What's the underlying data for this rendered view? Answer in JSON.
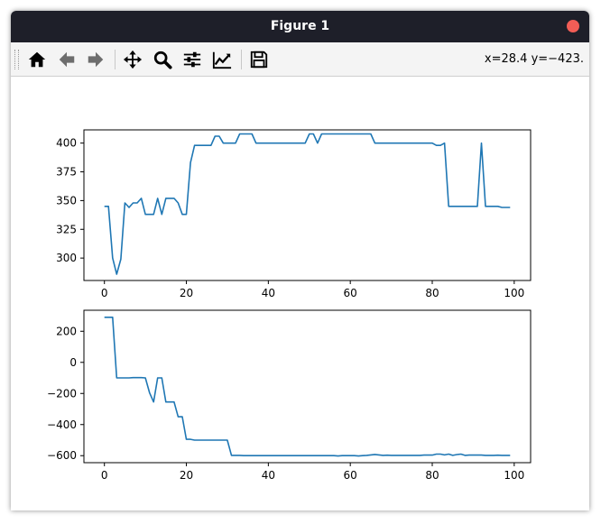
{
  "window": {
    "title": "Figure 1"
  },
  "toolbar": {
    "tools": [
      "home-icon",
      "back-arrow-icon",
      "forward-arrow-icon",
      "pan-icon",
      "zoom-icon",
      "configure-subplots-icon",
      "edit-axes-icon",
      "save-icon"
    ],
    "coords_text": "x=28.4 y=−423."
  },
  "colors": {
    "line": "#1f77b4",
    "titlebar": "#1e1f29",
    "close": "#f25d56"
  },
  "chart_data": [
    {
      "type": "line",
      "title": "",
      "xlabel": "",
      "ylabel": "",
      "xlim": [
        -5.0,
        104.0
      ],
      "ylim": [
        280.5,
        411.5
      ],
      "xticks": [
        0,
        20,
        40,
        60,
        80,
        100
      ],
      "xtick_labels": [
        "0",
        "20",
        "40",
        "60",
        "80",
        "100"
      ],
      "yticks": [
        300,
        325,
        350,
        375,
        400
      ],
      "ytick_labels": [
        "300",
        "325",
        "350",
        "375",
        "400"
      ],
      "grid": false,
      "x": [
        0,
        1,
        2,
        3,
        4,
        5,
        6,
        7,
        8,
        9,
        10,
        11,
        12,
        13,
        14,
        15,
        16,
        17,
        18,
        19,
        20,
        21,
        22,
        23,
        24,
        25,
        26,
        27,
        28,
        29,
        30,
        31,
        32,
        33,
        34,
        35,
        36,
        37,
        38,
        39,
        40,
        41,
        42,
        43,
        44,
        45,
        46,
        47,
        48,
        49,
        50,
        51,
        52,
        53,
        54,
        55,
        56,
        57,
        58,
        59,
        60,
        61,
        62,
        63,
        64,
        65,
        66,
        67,
        68,
        69,
        70,
        71,
        72,
        73,
        74,
        75,
        76,
        77,
        78,
        79,
        80,
        81,
        82,
        83,
        84,
        85,
        86,
        87,
        88,
        89,
        90,
        91,
        92,
        93,
        94,
        95,
        96,
        97,
        98,
        99
      ],
      "y": [
        345,
        345,
        300,
        286,
        299,
        348,
        344,
        348,
        348,
        352,
        338,
        338,
        338,
        352,
        338,
        352,
        352,
        352,
        348,
        338,
        338,
        383,
        398,
        398,
        398,
        398,
        398,
        406,
        406,
        400,
        400,
        400,
        400,
        408,
        408,
        408,
        408,
        400,
        400,
        400,
        400,
        400,
        400,
        400,
        400,
        400,
        400,
        400,
        400,
        400,
        408,
        408,
        400,
        408,
        408,
        408,
        408,
        408,
        408,
        408,
        408,
        408,
        408,
        408,
        408,
        408,
        400,
        400,
        400,
        400,
        400,
        400,
        400,
        400,
        400,
        400,
        400,
        400,
        400,
        400,
        400,
        398,
        398,
        400,
        345,
        345,
        345,
        345,
        345,
        345,
        345,
        345,
        400,
        345,
        345,
        345,
        345,
        344,
        344,
        344
      ]
    },
    {
      "type": "line",
      "title": "",
      "xlabel": "",
      "ylabel": "",
      "xlim": [
        -5.0,
        104.0
      ],
      "ylim": [
        -645,
        335
      ],
      "xticks": [
        0,
        20,
        40,
        60,
        80,
        100
      ],
      "xtick_labels": [
        "0",
        "20",
        "40",
        "60",
        "80",
        "100"
      ],
      "yticks": [
        200,
        0,
        -200,
        -400,
        -600
      ],
      "ytick_labels": [
        "200",
        "0",
        "−200",
        "−400",
        "−600"
      ],
      "grid": false,
      "x": [
        0,
        1,
        2,
        3,
        4,
        5,
        6,
        7,
        8,
        9,
        10,
        11,
        12,
        13,
        14,
        15,
        16,
        17,
        18,
        19,
        20,
        21,
        22,
        23,
        24,
        25,
        26,
        27,
        28,
        29,
        30,
        31,
        32,
        33,
        34,
        35,
        36,
        37,
        38,
        39,
        40,
        41,
        42,
        43,
        44,
        45,
        46,
        47,
        48,
        49,
        50,
        51,
        52,
        53,
        54,
        55,
        56,
        57,
        58,
        59,
        60,
        61,
        62,
        63,
        64,
        65,
        66,
        67,
        68,
        69,
        70,
        71,
        72,
        73,
        74,
        75,
        76,
        77,
        78,
        79,
        80,
        81,
        82,
        83,
        84,
        85,
        86,
        87,
        88,
        89,
        90,
        91,
        92,
        93,
        94,
        95,
        96,
        97,
        98,
        99
      ],
      "y": [
        290,
        290,
        290,
        -100,
        -100,
        -100,
        -100,
        -98,
        -98,
        -98,
        -100,
        -195,
        -255,
        -100,
        -100,
        -255,
        -255,
        -255,
        -350,
        -350,
        -495,
        -495,
        -500,
        -500,
        -500,
        -500,
        -500,
        -500,
        -500,
        -500,
        -500,
        -598,
        -598,
        -598,
        -600,
        -600,
        -600,
        -600,
        -600,
        -600,
        -600,
        -600,
        -600,
        -600,
        -600,
        -600,
        -600,
        -600,
        -600,
        -600,
        -600,
        -600,
        -600,
        -600,
        -600,
        -600,
        -600,
        -602,
        -600,
        -600,
        -600,
        -600,
        -602,
        -600,
        -598,
        -595,
        -592,
        -595,
        -598,
        -597,
        -598,
        -598,
        -598,
        -598,
        -598,
        -598,
        -598,
        -598,
        -596,
        -596,
        -596,
        -590,
        -590,
        -595,
        -590,
        -598,
        -593,
        -590,
        -598,
        -596,
        -596,
        -596,
        -596,
        -598,
        -598,
        -598,
        -597,
        -598,
        -598,
        -598
      ]
    }
  ]
}
